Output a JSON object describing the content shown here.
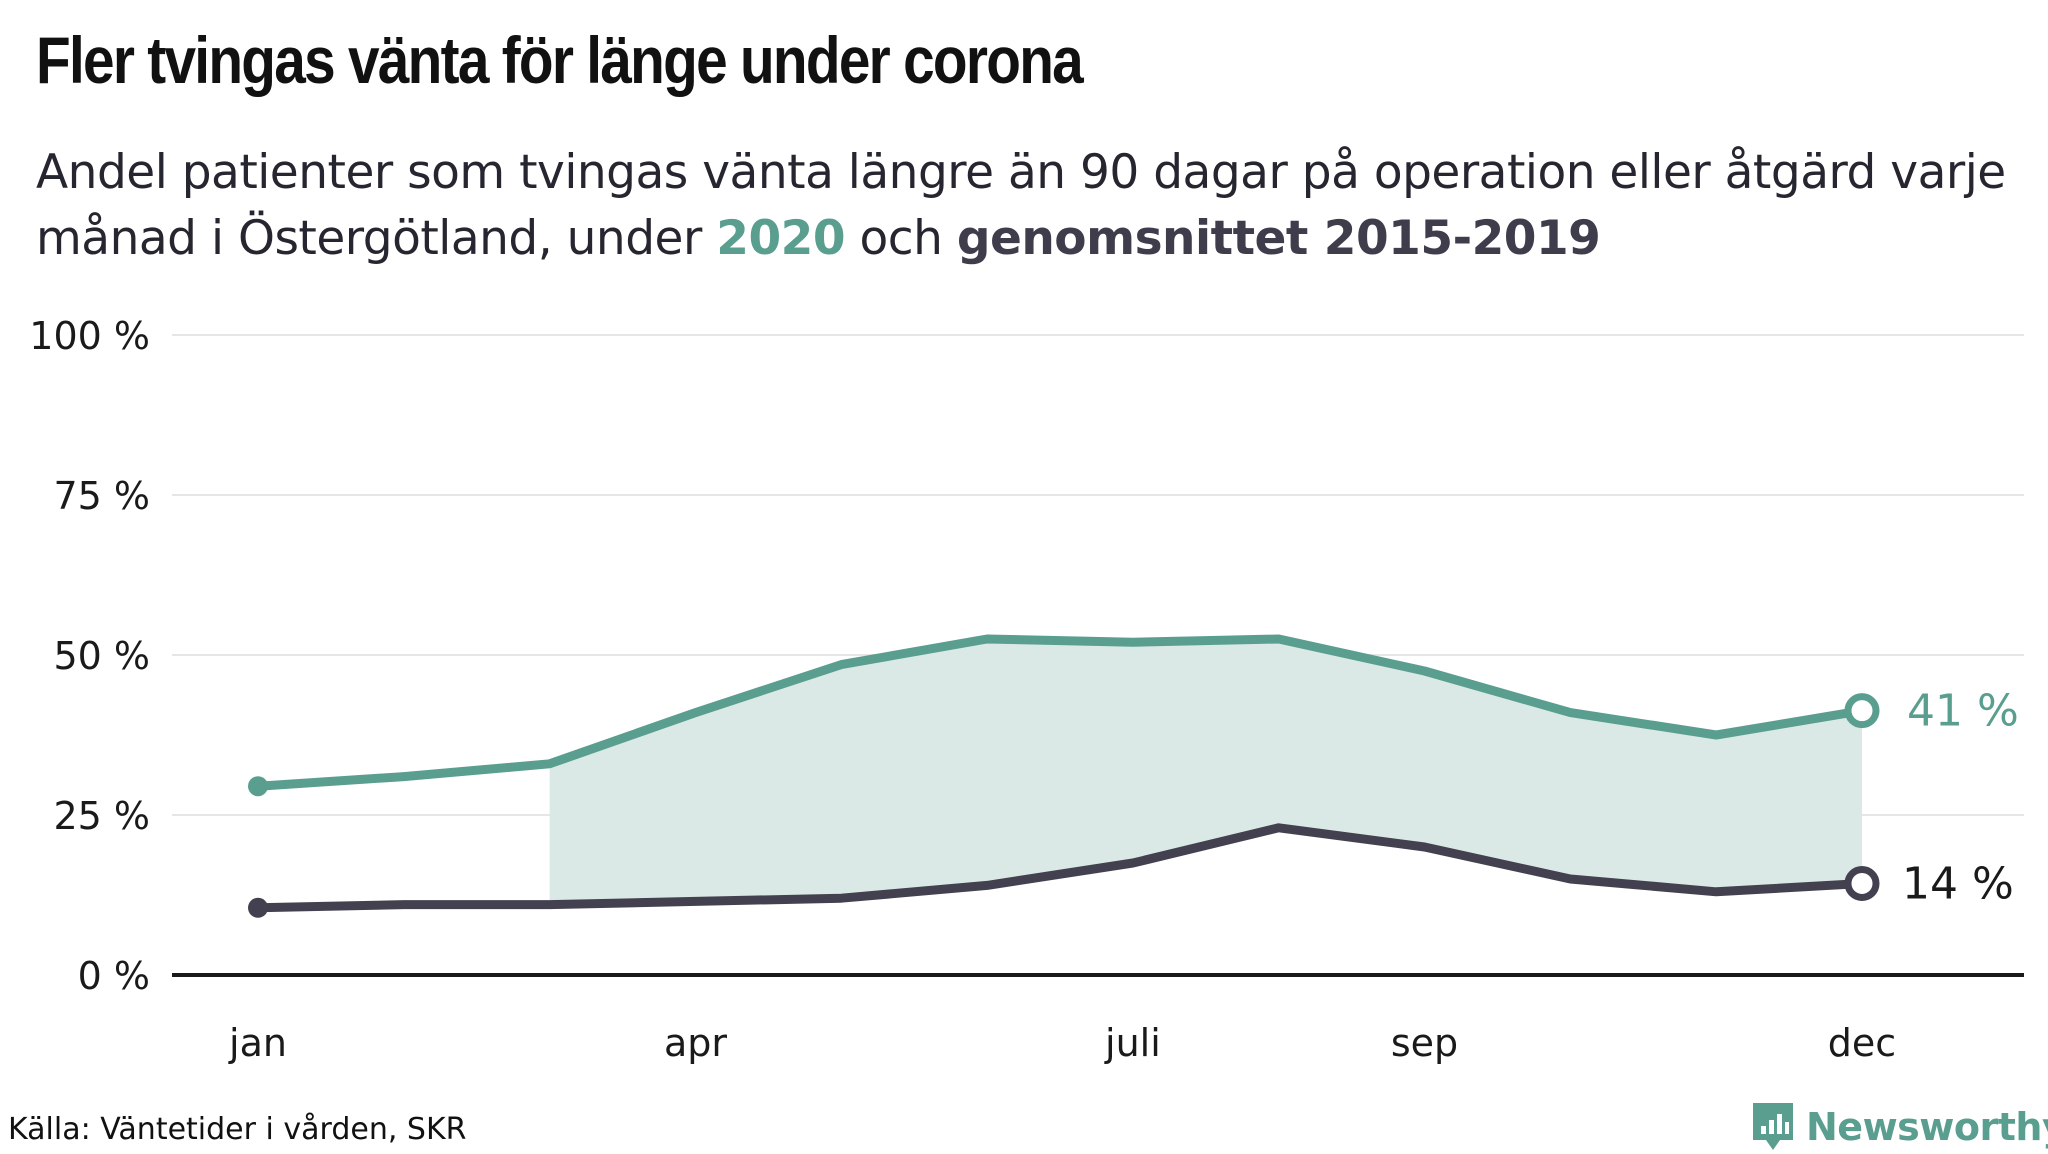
{
  "header": {
    "title": "Fler tvingas vänta för länge under corona",
    "subtitle_part1": "Andel patienter som tvingas vänta längre än 90 dagar på operation eller åtgärd varje månad i Östergötland, under ",
    "subtitle_highlight_2020": "2020",
    "subtitle_part2": " och ",
    "subtitle_highlight_avg": "genomsnittet 2015-2019"
  },
  "footer": {
    "source": "Källa: Väntetider i vården, SKR",
    "brand": "Newsworthy"
  },
  "colors": {
    "series_2020": "#5a9e8f",
    "series_avg": "#43414f",
    "fill_between": "#dbe9e6",
    "grid": "#e6e6e6",
    "baseline": "#1a1a1a"
  },
  "chart_data": {
    "type": "line",
    "x": [
      1,
      2,
      3,
      4,
      5,
      6,
      7,
      8,
      9,
      10,
      11,
      12
    ],
    "xticks": [
      {
        "x": 1,
        "label": "jan"
      },
      {
        "x": 4,
        "label": "apr"
      },
      {
        "x": 7,
        "label": "juli"
      },
      {
        "x": 9,
        "label": "sep"
      },
      {
        "x": 12,
        "label": "dec"
      }
    ],
    "ylim": [
      0,
      100
    ],
    "yticks": [
      {
        "value": 0,
        "label": "0 %"
      },
      {
        "value": 25,
        "label": "25 %"
      },
      {
        "value": 50,
        "label": "50 %"
      },
      {
        "value": 75,
        "label": "75 %"
      },
      {
        "value": 100,
        "label": "100 %"
      }
    ],
    "series": [
      {
        "key": "s2020",
        "values": [
          29.5,
          31,
          33,
          41,
          48.5,
          52.5,
          52,
          52.5,
          47.5,
          41,
          37.5,
          41.3
        ],
        "end_label": "41 %"
      },
      {
        "key": "avg",
        "values": [
          10.5,
          11,
          11,
          11.5,
          12,
          14,
          17.5,
          23,
          20,
          15,
          13,
          14.3
        ],
        "end_label": "14 %"
      }
    ],
    "shaded_from_x": 3,
    "grid": true
  }
}
